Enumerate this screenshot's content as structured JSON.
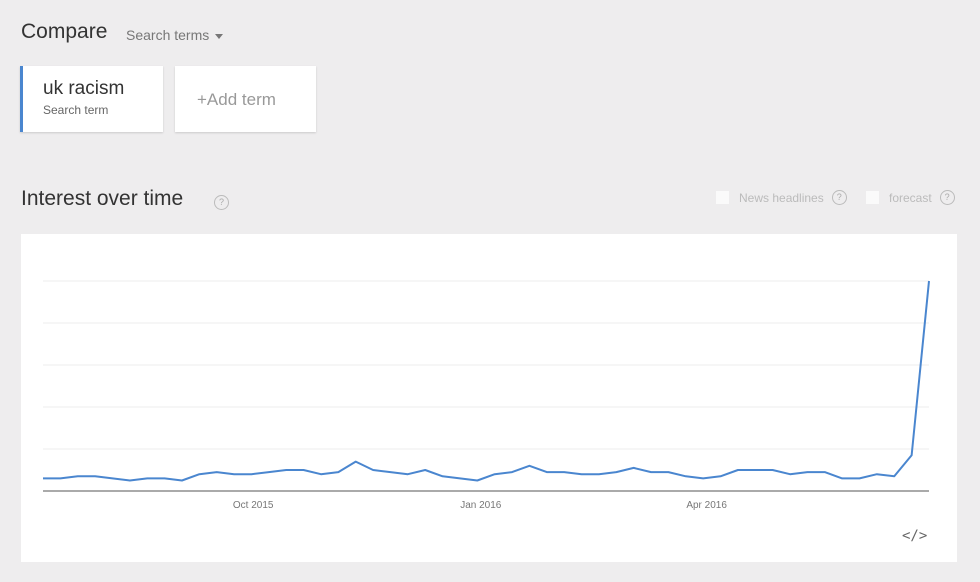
{
  "compare": {
    "title": "Compare",
    "dropdown_label": "Search terms"
  },
  "terms": [
    {
      "name": "uk racism",
      "type_label": "Search term"
    }
  ],
  "add_term_label": "+Add term",
  "section": {
    "title": "Interest over time",
    "help": "?"
  },
  "options": [
    {
      "label": "News headlines",
      "checked": false,
      "help": "?"
    },
    {
      "label": "forecast",
      "checked": false,
      "help": "?"
    }
  ],
  "embed_label": "</>",
  "colors": {
    "line": "#4a86cf",
    "term_accent": "#4a86cf",
    "background": "#eeedee"
  },
  "chart_data": {
    "type": "line",
    "title": "",
    "xlabel": "",
    "ylabel": "",
    "ylim": [
      0,
      100
    ],
    "grid": true,
    "y_gridlines": [
      20,
      40,
      60,
      80,
      100
    ],
    "x_tick_labels": [
      "Oct 2015",
      "Jan 2016",
      "Apr 2016"
    ],
    "series": [
      {
        "values": [
          6,
          6,
          7,
          7,
          6,
          5,
          6,
          6,
          5,
          8,
          9,
          8,
          8,
          9,
          10,
          10,
          8,
          9,
          14,
          10,
          9,
          8,
          10,
          7,
          6,
          5,
          8,
          9,
          12,
          9,
          9,
          8,
          8,
          9,
          11,
          9,
          9,
          7,
          6,
          7,
          10,
          10,
          10,
          8,
          9,
          9,
          6,
          6,
          8,
          7,
          17,
          100
        ]
      }
    ]
  }
}
